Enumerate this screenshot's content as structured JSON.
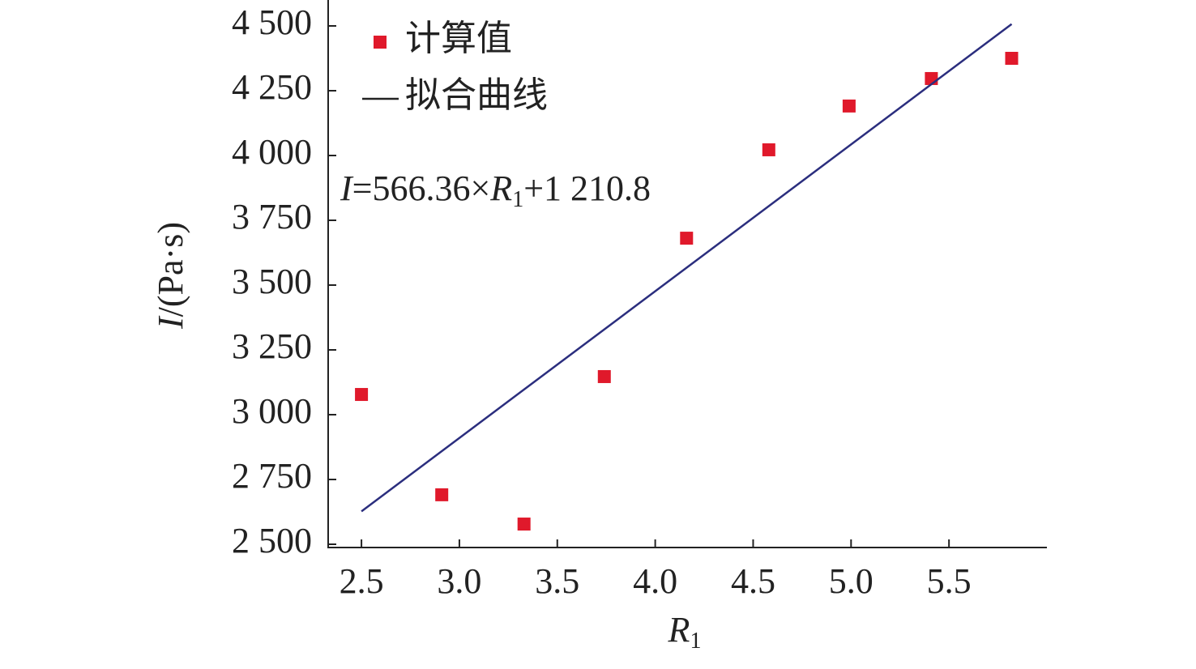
{
  "chart_data": {
    "type": "scatter",
    "x_label": {
      "var": "R",
      "sub": "1"
    },
    "y_label": {
      "var": "I",
      "unit": "/(Pa·s)"
    },
    "annotation": {
      "lhs": "I",
      "eq": "=566.36×",
      "var": "R",
      "sub": "1",
      "rest": "+1 210.8"
    },
    "series": [
      {
        "name": "计算值",
        "style": "marker",
        "color": "#e0192b",
        "x": [
          2.5,
          2.91,
          3.33,
          3.74,
          4.16,
          4.58,
          4.99,
          5.41,
          5.82
        ],
        "values": [
          3078,
          2691,
          2578,
          3147,
          3681,
          4022,
          4191,
          4297,
          4375
        ]
      },
      {
        "name": "拟合曲线",
        "style": "line",
        "color": "#2b2e7e",
        "x": [
          2.5,
          5.82
        ],
        "values": [
          2627,
          4507
        ]
      }
    ],
    "xlim": [
      2.33,
      6.0
    ],
    "ylim": [
      2487.5,
      4600
    ],
    "xticks": [
      2.5,
      {
        "value": 3.0,
        "label": "3.0"
      },
      3.5,
      {
        "value": 4.0,
        "label": "4.0"
      },
      4.5,
      {
        "value": 5.0,
        "label": "5.0"
      },
      5.5
    ],
    "yticks": [
      {
        "value": 2500,
        "label": "2 500"
      },
      {
        "value": 2750,
        "label": "2 750"
      },
      {
        "value": 3000,
        "label": "3 000"
      },
      {
        "value": 3250,
        "label": "3 250"
      },
      {
        "value": 3500,
        "label": "3 500"
      },
      {
        "value": 3750,
        "label": "3 750"
      },
      {
        "value": 4000,
        "label": "4 000"
      },
      {
        "value": 4250,
        "label": "4 250"
      },
      {
        "value": 4500,
        "label": "4 500"
      }
    ],
    "legend": "top-left"
  }
}
